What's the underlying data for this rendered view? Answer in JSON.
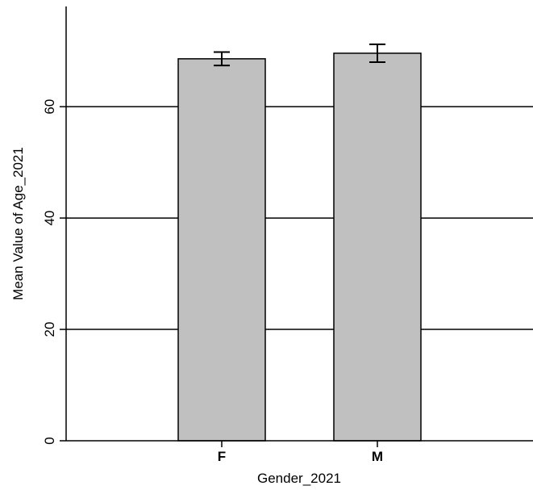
{
  "chart_data": {
    "type": "bar",
    "categories": [
      "F",
      "M"
    ],
    "values": [
      68.6,
      69.6
    ],
    "error_bars": [
      {
        "low": 67.4,
        "high": 69.8
      },
      {
        "low": 68.0,
        "high": 71.2
      }
    ],
    "xlabel": "Gender_2021",
    "ylabel": "Mean Value of Age_2021",
    "ylim": [
      0,
      78
    ],
    "yticks": [
      0,
      20,
      40,
      60
    ],
    "grid": true,
    "colors": {
      "bar_fill": "#c0c0c0",
      "bar_stroke": "#000000",
      "grid": "#000000"
    }
  }
}
